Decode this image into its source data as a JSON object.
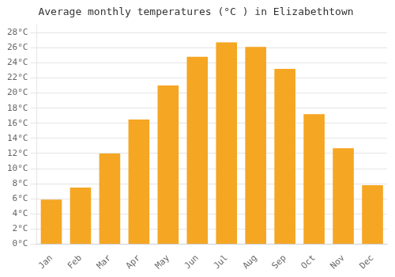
{
  "chart_data": {
    "type": "bar",
    "title": "Average monthly temperatures (°C ) in Elizabethtown",
    "categories": [
      "Jan",
      "Feb",
      "Mar",
      "Apr",
      "May",
      "Jun",
      "Jul",
      "Aug",
      "Sep",
      "Oct",
      "Nov",
      "Dec"
    ],
    "values": [
      5.9,
      7.5,
      12.0,
      16.5,
      21.0,
      24.8,
      26.7,
      26.1,
      23.2,
      17.2,
      12.7,
      7.8
    ],
    "color": "#F5A623",
    "ylim": [
      0,
      29
    ],
    "yticks": [
      {
        "value": 0,
        "label": "0°C"
      },
      {
        "value": 2,
        "label": "2°C"
      },
      {
        "value": 4,
        "label": "4°C"
      },
      {
        "value": 6,
        "label": "6°C"
      },
      {
        "value": 8,
        "label": "8°C"
      },
      {
        "value": 10,
        "label": "10°C"
      },
      {
        "value": 12,
        "label": "12°C"
      },
      {
        "value": 14,
        "label": "14°C"
      },
      {
        "value": 16,
        "label": "16°C"
      },
      {
        "value": 18,
        "label": "18°C"
      },
      {
        "value": 20,
        "label": "20°C"
      },
      {
        "value": 22,
        "label": "22°C"
      },
      {
        "value": 24,
        "label": "24°C"
      },
      {
        "value": 26,
        "label": "26°C"
      },
      {
        "value": 28,
        "label": "28°C"
      }
    ],
    "grid": true
  }
}
